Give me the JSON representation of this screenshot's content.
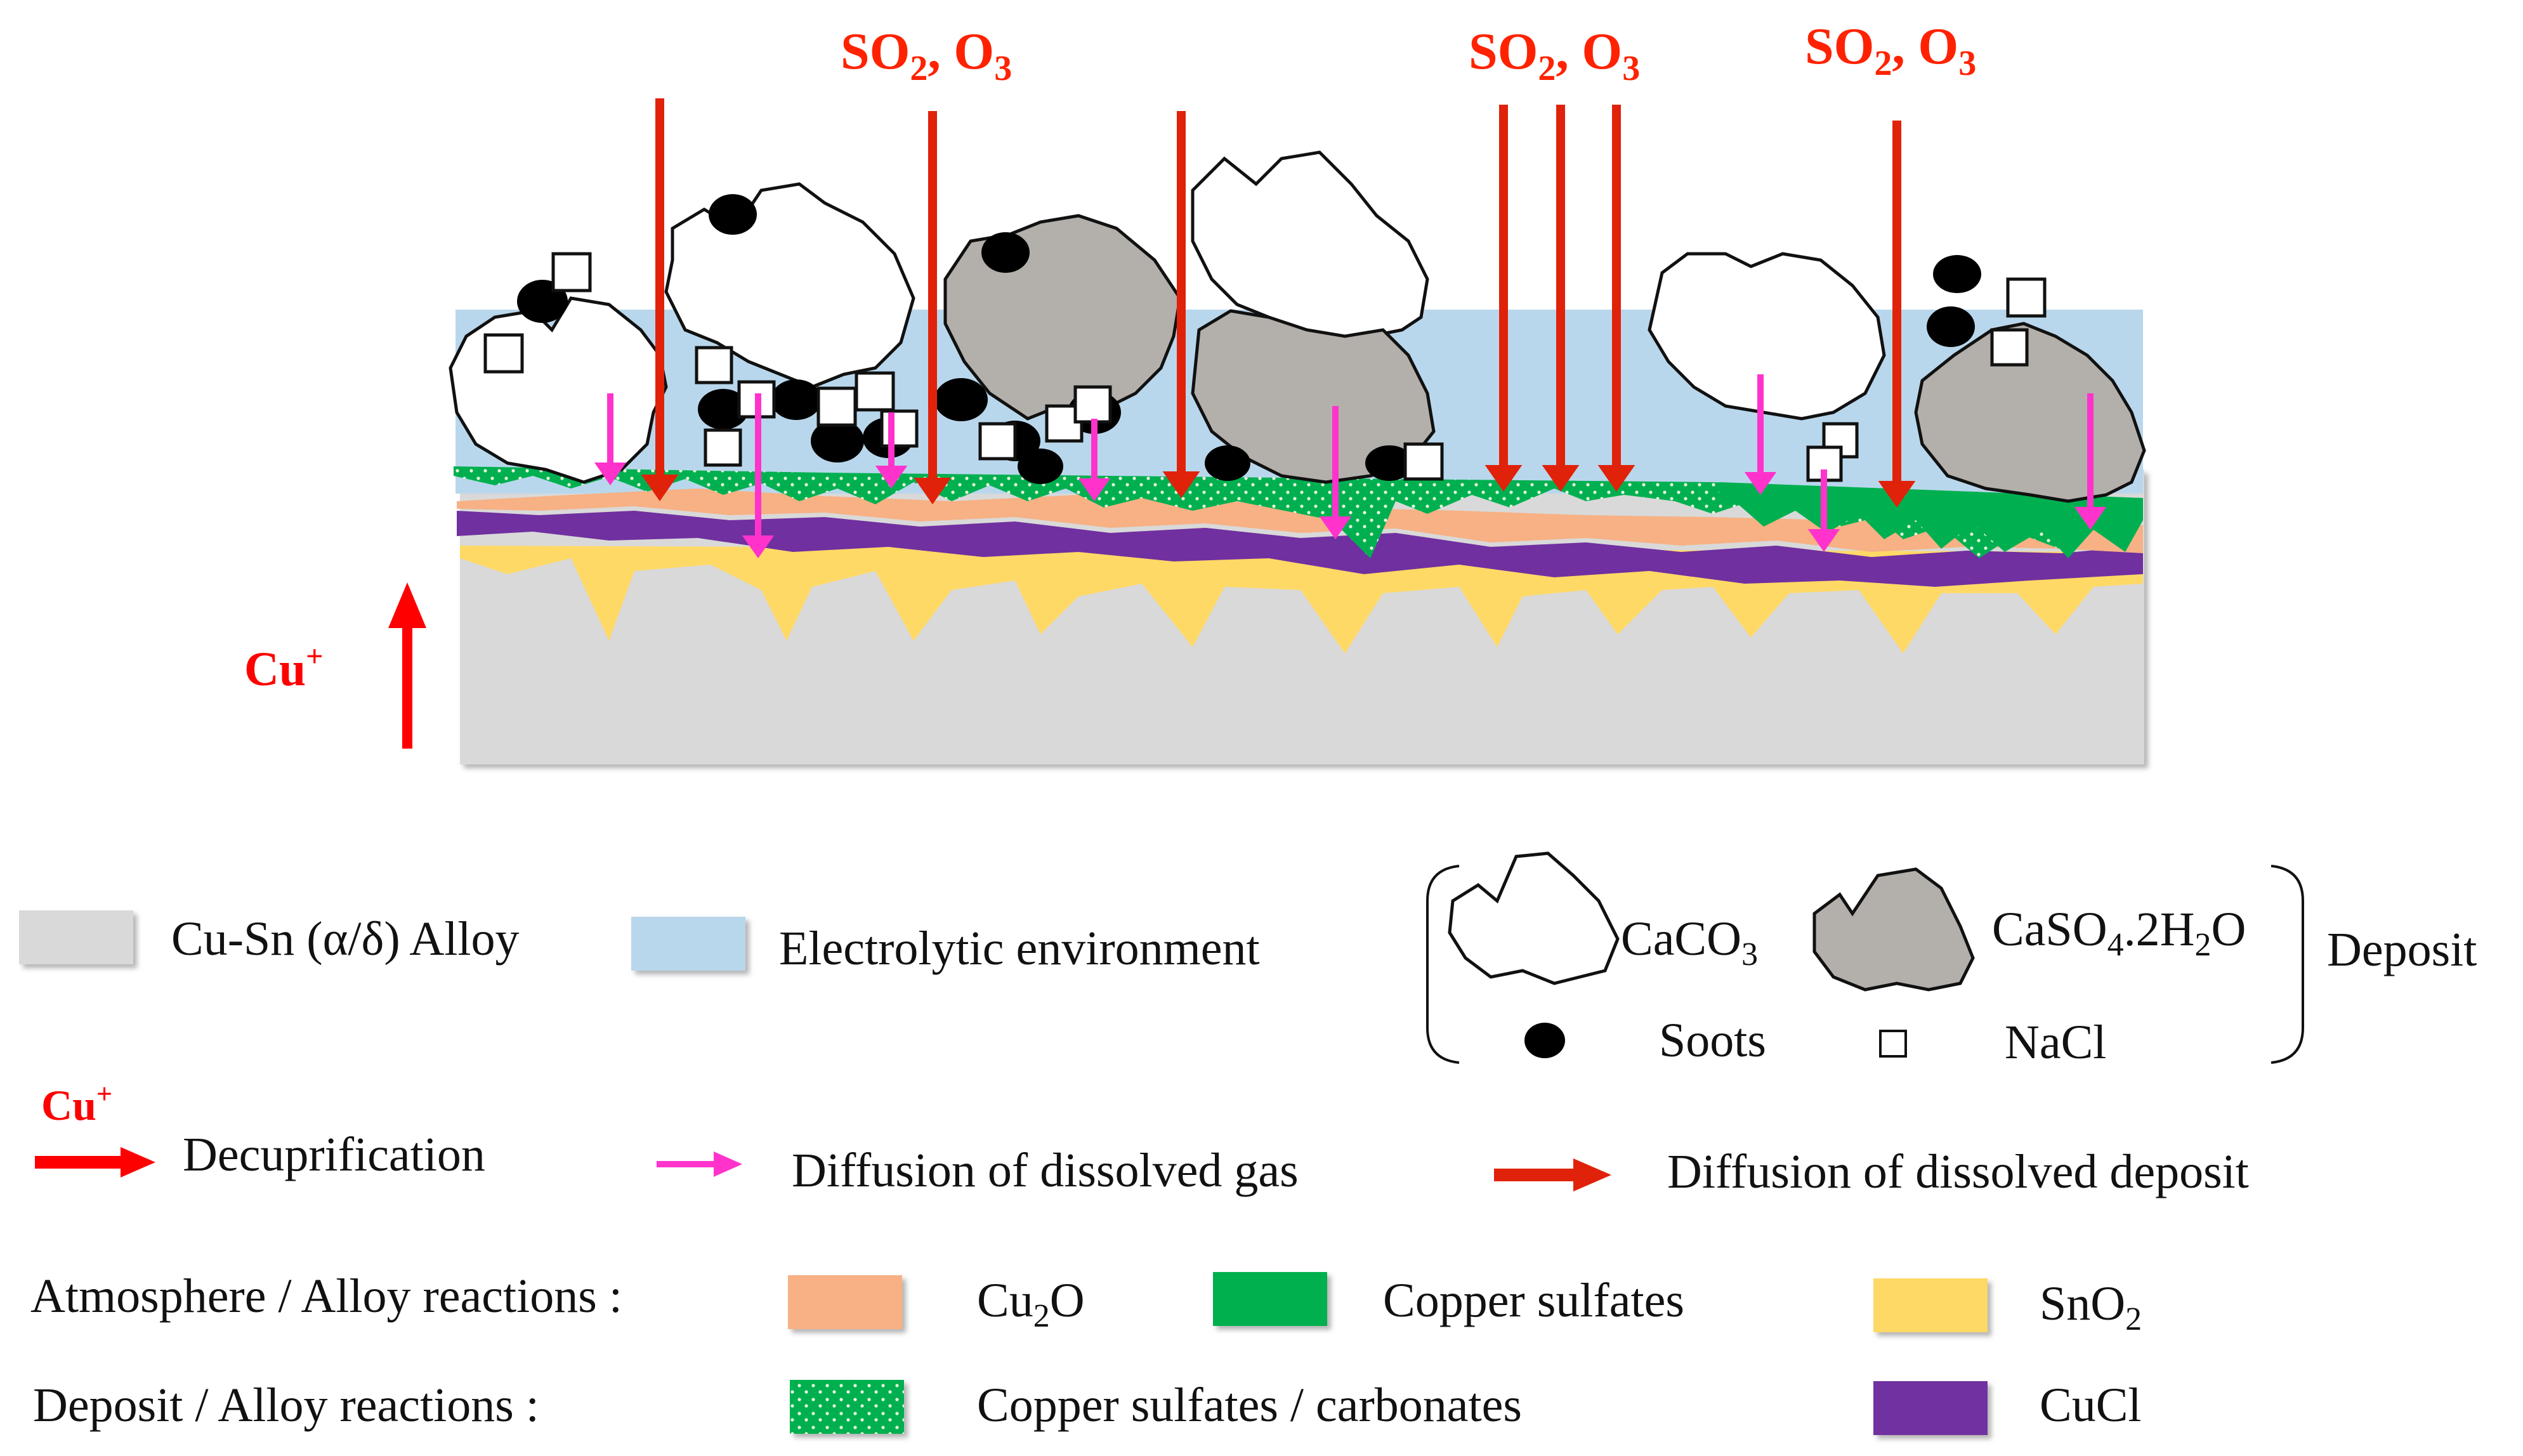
{
  "diagram": {
    "gas_labels": [
      {
        "main": "SO",
        "sub": "2",
        "sep": ", O",
        "sub2": "3"
      },
      {
        "main": "SO",
        "sub": "2",
        "sep": ", O",
        "sub2": "3"
      },
      {
        "main": "SO",
        "sub": "2",
        "sep": ", O",
        "sub2": "3"
      }
    ],
    "cu_label": {
      "main": "Cu",
      "sup": "+"
    }
  },
  "legend": {
    "alloy": {
      "label": "Cu-Sn  (α/δ) Alloy"
    },
    "electrolytic": {
      "label": "Electrolytic environment"
    },
    "caco3": {
      "main": "CaCO",
      "sub": "3"
    },
    "caso4": {
      "a": "CaSO",
      "b": "4",
      "c": ".2H",
      "d": "2",
      "e": "O"
    },
    "deposit_label": "Deposit",
    "soots_label": "Soots",
    "nacl_label": "NaCl",
    "decupr": {
      "ion_main": "Cu",
      "ion_sup": "+",
      "label": "Decuprification"
    },
    "diff_gas": {
      "label": "Diffusion of dissolved gas"
    },
    "diff_deposit": {
      "label": "Diffusion of dissolved deposit"
    },
    "atm_title": "Atmosphere / Alloy reactions :",
    "dep_title": "Deposit / Alloy reactions :",
    "cu2o": {
      "main": "Cu",
      "sub": "2",
      "end": "O"
    },
    "copper_sulfates": "Copper sulfates",
    "sno2": {
      "main": "SnO",
      "sub": "2"
    },
    "sulfates_carbonates": "Copper sulfates / carbonates",
    "cucl": "CuCl"
  },
  "colors": {
    "alloy": "#d9d9d9",
    "electrolyte": "#b9d7ec",
    "cu2o": "#f7b184",
    "sulfates": "#00b050",
    "sno2": "#ffd966",
    "cucl": "#7030a0",
    "red_arrow": "#ff0000",
    "dark_red_arrow": "#e0220a",
    "magenta_arrow": "#ff33cc",
    "gypsum": "#b3afab"
  }
}
